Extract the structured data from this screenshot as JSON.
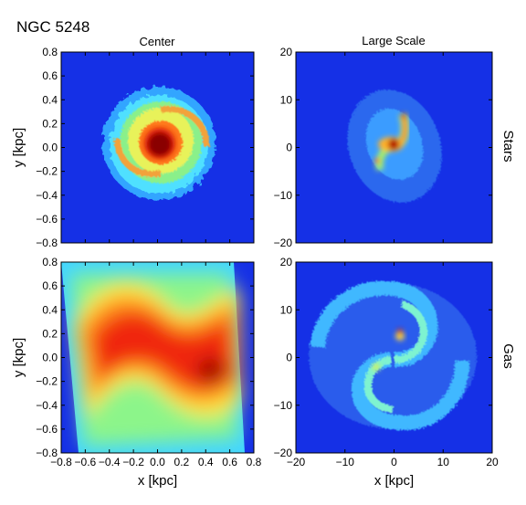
{
  "figure_title": "NGC 5248",
  "column_titles": [
    "Center",
    "Large Scale"
  ],
  "row_labels": [
    "Stars",
    "Gas"
  ],
  "colors": {
    "background": "#1530e6",
    "colormap": [
      "#000080",
      "#0000ff",
      "#0080ff",
      "#00ffff",
      "#80ff80",
      "#ffff00",
      "#ff8000",
      "#ff0000",
      "#800000"
    ]
  },
  "chart_data": [
    {
      "type": "heatmap",
      "panel": "Stars - Center",
      "title": "Center",
      "xlabel": "",
      "ylabel": "y [kpc]",
      "xlim": [
        -0.8,
        0.8
      ],
      "ylim": [
        -0.8,
        0.8
      ],
      "yticks": [
        -0.8,
        -0.6,
        -0.4,
        -0.2,
        0.0,
        0.2,
        0.4,
        0.6,
        0.8
      ],
      "xticks": [],
      "yticklabels": [
        "−0.8",
        "−0.6",
        "−0.4",
        "−0.2",
        "0.0",
        "0.2",
        "0.4",
        "0.6",
        "0.8"
      ],
      "xticklabels": [],
      "description_features": {
        "core_center": [
          0.0,
          0.0
        ],
        "core_radius": 0.1,
        "disk_radius": 0.45,
        "ring_radius": 0.3,
        "spiral_arms": 2
      }
    },
    {
      "type": "heatmap",
      "panel": "Stars - Large Scale",
      "title": "Large Scale",
      "xlabel": "",
      "ylabel": "",
      "xlim": [
        -20,
        20
      ],
      "ylim": [
        -20,
        20
      ],
      "yticks": [
        -20,
        -10,
        0,
        10,
        20
      ],
      "xticks": [],
      "yticklabels": [
        "−20",
        "−10",
        "0",
        "10",
        "20"
      ],
      "xticklabels": [],
      "description_features": {
        "core_center": [
          0,
          0
        ],
        "bar_length": 6,
        "disk_extent": 11,
        "spiral_arms": 2
      }
    },
    {
      "type": "heatmap",
      "panel": "Gas - Center",
      "title": "",
      "xlabel": "x [kpc]",
      "ylabel": "y [kpc]",
      "xlim": [
        -0.8,
        0.8
      ],
      "ylim": [
        -0.8,
        0.8
      ],
      "yticks": [
        -0.8,
        -0.6,
        -0.4,
        -0.2,
        0.0,
        0.2,
        0.4,
        0.6,
        0.8
      ],
      "xticks": [
        -0.8,
        -0.6,
        -0.4,
        -0.2,
        0.0,
        0.2,
        0.4,
        0.6,
        0.8
      ],
      "yticklabels": [
        "−0.8",
        "−0.6",
        "−0.4",
        "−0.2",
        "0.0",
        "0.2",
        "0.4",
        "0.6",
        "0.8"
      ],
      "xticklabels": [
        "−0.8",
        "−0.6",
        "−0.4",
        "−0.2",
        "0.0",
        "0.2",
        "0.4",
        "0.6",
        "0.8"
      ],
      "description_features": {
        "pattern": "S-shaped band",
        "peak_location": [
          0.45,
          -0.1
        ]
      }
    },
    {
      "type": "heatmap",
      "panel": "Gas - Large Scale",
      "title": "",
      "xlabel": "x [kpc]",
      "ylabel": "",
      "xlim": [
        -20,
        20
      ],
      "ylim": [
        -20,
        20
      ],
      "yticks": [
        -20,
        -10,
        0,
        10,
        20
      ],
      "xticks": [
        -20,
        -10,
        0,
        10,
        20
      ],
      "yticklabels": [
        "−20",
        "−10",
        "0",
        "10",
        "20"
      ],
      "xticklabels": [
        "−20",
        "−10",
        "0",
        "10",
        "20"
      ],
      "description_features": {
        "pattern": "two-armed spiral",
        "disk_extent": 17,
        "peak_location": [
          2,
          5
        ]
      }
    }
  ]
}
